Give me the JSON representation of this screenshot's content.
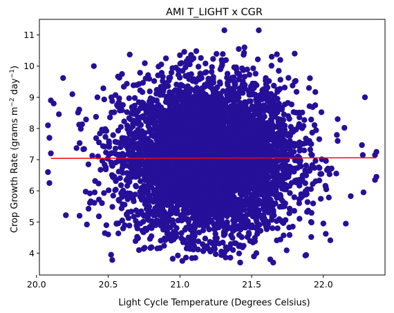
{
  "chart_data": {
    "type": "scatter",
    "title": "AMI T_LIGHT x CGR",
    "xlabel": "Light Cycle Temperature (Degrees Celsius)",
    "ylabel_main": "Crop Growth Rate (grams m",
    "ylabel_sup1": "−2",
    "ylabel_mid": " day",
    "ylabel_sup2": "−1",
    "ylabel_end": ")",
    "xlim": [
      20.02,
      22.43
    ],
    "ylim": [
      3.3,
      11.5
    ],
    "xticks": [
      20.0,
      20.5,
      21.0,
      21.5,
      22.0
    ],
    "xtick_labels": [
      "20.0",
      "20.5",
      "21.0",
      "21.5",
      "22.0"
    ],
    "yticks": [
      4,
      5,
      6,
      7,
      8,
      9,
      10,
      11
    ],
    "ytick_labels": [
      "4",
      "5",
      "6",
      "7",
      "8",
      "9",
      "10",
      "11"
    ],
    "grid": false,
    "colors": {
      "points": "#260f99",
      "trend": "#ff0000"
    },
    "cloud": {
      "x_center": 21.2,
      "x_spread": 0.3,
      "y_center": 7.05,
      "y_spread": 1.22,
      "count": 5200
    },
    "series": [
      {
        "type": "scatter",
        "points": [
          [
            21.31,
            11.15
          ],
          [
            21.55,
            11.15
          ],
          [
            21.41,
            10.55
          ],
          [
            21.45,
            10.6
          ],
          [
            20.65,
            10.37
          ],
          [
            21.0,
            10.35
          ],
          [
            21.64,
            10.3
          ],
          [
            21.8,
            10.4
          ],
          [
            20.4,
            10.0
          ],
          [
            21.7,
            10.2
          ],
          [
            20.1,
            8.9
          ],
          [
            20.12,
            8.8
          ],
          [
            20.08,
            8.1
          ],
          [
            20.09,
            7.7
          ],
          [
            20.1,
            7.2
          ],
          [
            20.08,
            6.6
          ],
          [
            20.09,
            6.25
          ],
          [
            22.37,
            7.25
          ],
          [
            22.36,
            7.15
          ],
          [
            22.37,
            6.45
          ],
          [
            22.36,
            6.35
          ],
          [
            22.29,
            9.0
          ],
          [
            22.28,
            5.95
          ],
          [
            22.1,
            7.6
          ],
          [
            22.05,
            6.7
          ],
          [
            21.42,
            3.7
          ],
          [
            21.63,
            3.8
          ],
          [
            21.65,
            3.7
          ],
          [
            20.95,
            3.82
          ],
          [
            20.5,
            4.6
          ],
          [
            22.0,
            4.95
          ],
          [
            20.3,
            5.2
          ],
          [
            20.25,
            9.1
          ],
          [
            22.1,
            8.3
          ],
          [
            21.9,
            9.3
          ]
        ]
      },
      {
        "type": "line",
        "x": [
          20.1,
          22.37
        ],
        "y": [
          7.04,
          7.06
        ]
      }
    ]
  }
}
